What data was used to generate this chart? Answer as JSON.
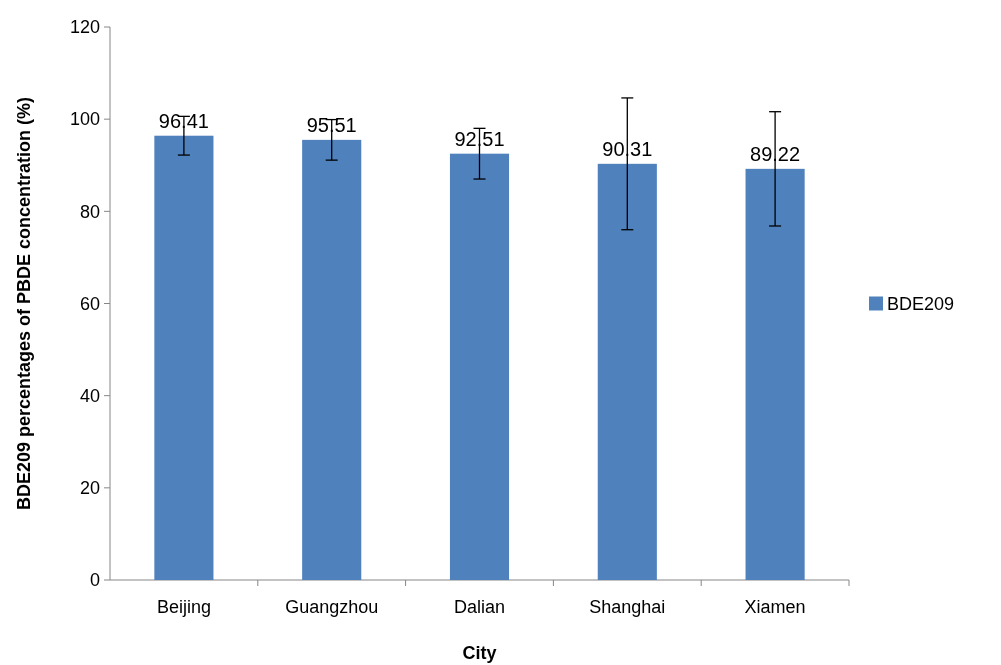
{
  "chart_data": {
    "type": "bar",
    "xlabel": "City",
    "ylabel": "BDE209 percentages of PBDE concentration (%)",
    "categories": [
      "Beijing",
      "Guangzhou",
      "Dalian",
      "Shanghai",
      "Xiamen"
    ],
    "series": [
      {
        "name": "BDE209",
        "color": "#4f81bd",
        "values": [
          96.41,
          95.51,
          92.51,
          90.31,
          89.22
        ],
        "errors": [
          4.2,
          4.4,
          5.5,
          14.3,
          12.4
        ]
      }
    ],
    "ylim": [
      0,
      120
    ],
    "yticks": [
      0,
      20,
      40,
      60,
      80,
      100,
      120
    ],
    "data_labels": true,
    "legend": "right",
    "grid": false
  }
}
